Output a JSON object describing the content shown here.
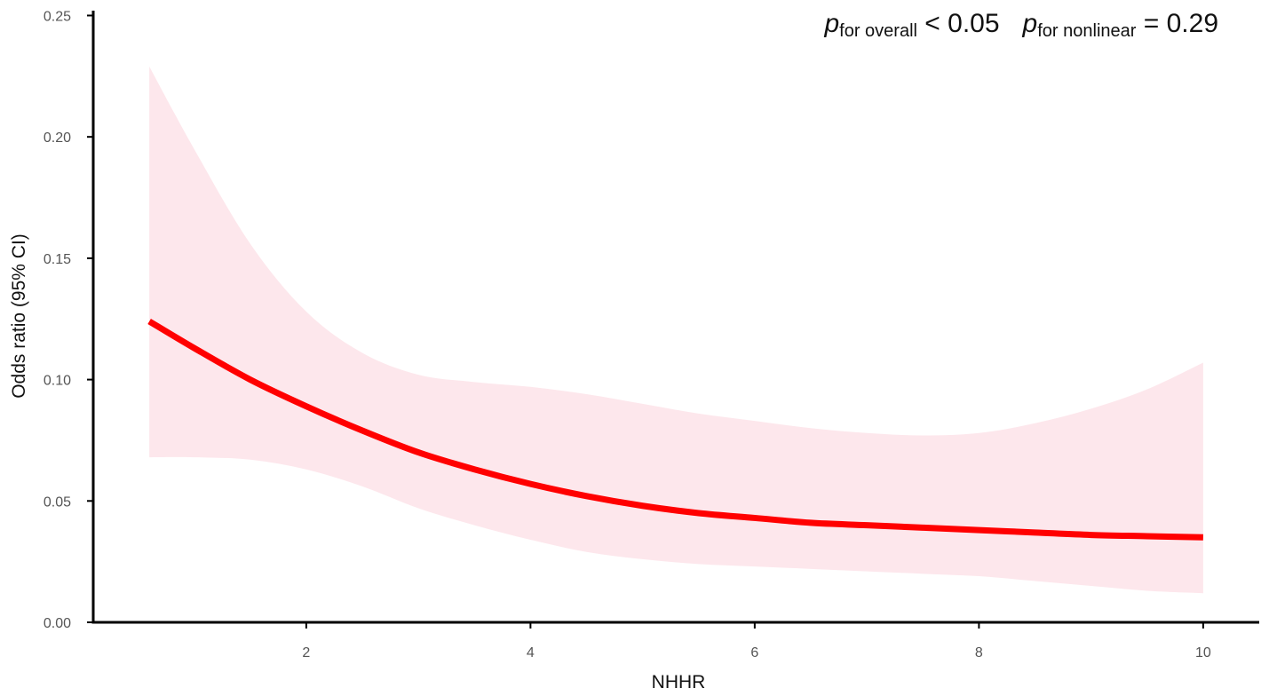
{
  "chart_data": {
    "type": "line",
    "title": "",
    "xlabel": "NHHR",
    "ylabel": "Odds ratio (95% CI)",
    "xlim": [
      0.1,
      10.5
    ],
    "ylim": [
      0,
      0.252
    ],
    "x_ticks": [
      2,
      4,
      6,
      8,
      10
    ],
    "x_tick_labels": [
      "2",
      "4",
      "6",
      "8",
      "10"
    ],
    "y_ticks": [
      0,
      0.05,
      0.1,
      0.15,
      0.2,
      0.25
    ],
    "y_tick_labels": [
      "0.00",
      "0.05",
      "0.10",
      "0.15",
      "0.20",
      "0.25"
    ],
    "grid": false,
    "colors": {
      "line": "#ff0000",
      "band": "#fde7ec",
      "axis": "#000000"
    },
    "annotation": {
      "p1_symbol": "p",
      "p1_sub": "for overall",
      "p1_rest": " < 0.05",
      "p2_symbol": "p",
      "p2_sub": "for nonlinear",
      "p2_rest": " = 0.29"
    },
    "series": [
      {
        "x": [
          0.6,
          1.0,
          1.5,
          2.0,
          2.5,
          3.0,
          3.5,
          4.0,
          4.5,
          5.0,
          5.5,
          6.0,
          6.5,
          7.0,
          7.5,
          8.0,
          8.5,
          9.0,
          9.5,
          10.0
        ],
        "y": [
          0.124,
          0.113,
          0.1,
          0.089,
          0.079,
          0.07,
          0.063,
          0.057,
          0.052,
          0.048,
          0.045,
          0.043,
          0.041,
          0.04,
          0.039,
          0.038,
          0.037,
          0.036,
          0.0355,
          0.035
        ],
        "lower": [
          0.068,
          0.068,
          0.067,
          0.063,
          0.056,
          0.047,
          0.04,
          0.034,
          0.029,
          0.026,
          0.024,
          0.023,
          0.022,
          0.021,
          0.02,
          0.019,
          0.017,
          0.015,
          0.013,
          0.012
        ],
        "upper": [
          0.229,
          0.195,
          0.156,
          0.128,
          0.111,
          0.102,
          0.099,
          0.097,
          0.094,
          0.09,
          0.086,
          0.083,
          0.08,
          0.078,
          0.077,
          0.078,
          0.082,
          0.088,
          0.096,
          0.107
        ]
      }
    ]
  }
}
